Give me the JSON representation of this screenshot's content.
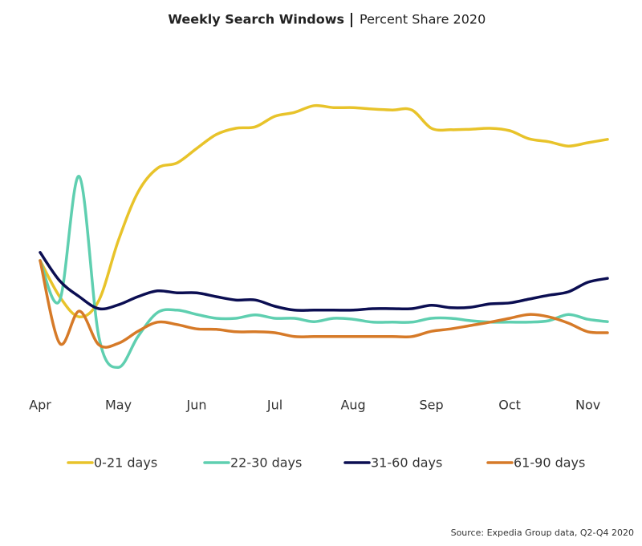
{
  "chart_data": {
    "type": "line",
    "title": "Weekly Search Windows",
    "subtitle": "Percent Share 2020",
    "source": "Source: Expedia Group data, Q2-Q4 2020",
    "x": [
      0,
      0.25,
      0.5,
      0.75,
      1,
      1.25,
      1.5,
      1.75,
      2,
      2.25,
      2.5,
      2.75,
      3,
      3.25,
      3.5,
      3.75,
      4,
      4.25,
      4.5,
      4.75,
      5,
      5.25,
      5.5,
      5.75,
      6,
      6.25,
      6.5,
      6.75,
      7,
      7.25
    ],
    "xlim": [
      0,
      7.25
    ],
    "xticks": [
      {
        "value": 0,
        "label": "Apr"
      },
      {
        "value": 1,
        "label": "May"
      },
      {
        "value": 2,
        "label": "Jun"
      },
      {
        "value": 3,
        "label": "Jul"
      },
      {
        "value": 4,
        "label": "Aug"
      },
      {
        "value": 5,
        "label": "Sep"
      },
      {
        "value": 6,
        "label": "Oct"
      },
      {
        "value": 7,
        "label": "Nov"
      }
    ],
    "ylim": [
      0,
      70
    ],
    "series": [
      {
        "name": "0-21 days",
        "color": "#e8c32a",
        "values": [
          27.5,
          20,
          15.8,
          19.2,
          31.7,
          41.7,
          46.7,
          47.8,
          50.8,
          53.7,
          55,
          55.3,
          57.5,
          58.3,
          59.7,
          59.3,
          59.3,
          59,
          58.8,
          58.8,
          55,
          54.7,
          54.8,
          55,
          54.5,
          52.8,
          52.2,
          51.3,
          52,
          52.7
        ]
      },
      {
        "name": "22-30 days",
        "color": "#5fcfb0",
        "values": [
          27.5,
          19.2,
          45,
          11.7,
          5.3,
          11.7,
          16.7,
          17.2,
          16.3,
          15.5,
          15.5,
          16.2,
          15.5,
          15.5,
          14.8,
          15.5,
          15.3,
          14.7,
          14.7,
          14.7,
          15.5,
          15.5,
          15,
          14.7,
          14.7,
          14.7,
          15,
          16.3,
          15.3,
          14.8
        ]
      },
      {
        "name": "31-60 days",
        "color": "#0b0e52",
        "values": [
          29.2,
          23.3,
          20,
          17.5,
          18.3,
          20,
          21.2,
          20.8,
          20.8,
          20,
          19.3,
          19.3,
          18,
          17.2,
          17.2,
          17.2,
          17.2,
          17.5,
          17.5,
          17.5,
          18.2,
          17.7,
          17.8,
          18.5,
          18.7,
          19.5,
          20.3,
          21,
          23,
          23.8
        ]
      },
      {
        "name": "61-90 days",
        "color": "#d67a28",
        "values": [
          27.5,
          10.3,
          17,
          10,
          10.3,
          12.8,
          14.7,
          14.2,
          13.3,
          13.2,
          12.7,
          12.7,
          12.5,
          11.7,
          11.7,
          11.7,
          11.7,
          11.7,
          11.7,
          11.7,
          12.8,
          13.3,
          14,
          14.7,
          15.5,
          16.3,
          15.8,
          14.5,
          12.7,
          12.5
        ]
      }
    ]
  }
}
